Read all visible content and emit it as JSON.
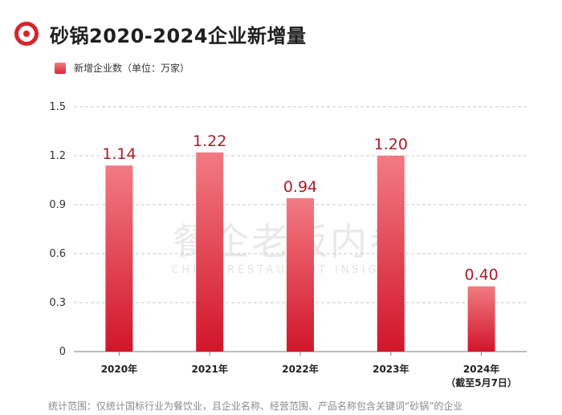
{
  "header": {
    "title": "砂锅2020-2024企业新增量"
  },
  "colors": {
    "accent": "#d8242b",
    "bar_top": "#f27b83",
    "bar_bottom": "#d2152a",
    "value_label": "#a81c2a"
  },
  "watermark": {
    "cn": "餐企老板内参",
    "en": "CHINA RESTAURANT INSIGHTS"
  },
  "chart_data": {
    "type": "bar",
    "title": "砂锅2020-2024企业新增量",
    "legend": "新增企业数（单位：万家）",
    "categories": [
      "2020年",
      "2021年",
      "2022年",
      "2023年",
      "2024年"
    ],
    "category_notes": [
      "",
      "",
      "",
      "",
      "（截至5月7日）"
    ],
    "values": [
      1.14,
      1.22,
      0.94,
      1.2,
      0.4
    ],
    "value_labels": [
      "1.14",
      "1.22",
      "0.94",
      "1.20",
      "0.40"
    ],
    "ylim": [
      0,
      1.5
    ],
    "yticks": [
      0,
      0.3,
      0.6,
      0.9,
      1.2,
      1.5
    ],
    "ytick_labels": [
      "0",
      "0.3",
      "0.6",
      "0.9",
      "1.2",
      "1.5"
    ],
    "grid": true
  },
  "footnote": "统计范围：仅统计国标行业为餐饮业，且企业名称、经营范围、产品名称包含关键词“砂锅”的企业"
}
